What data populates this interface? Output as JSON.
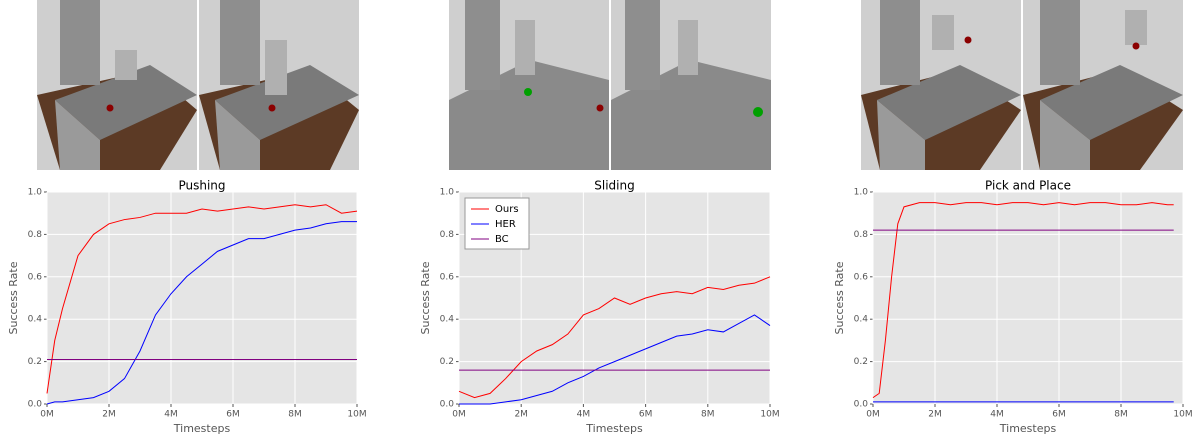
{
  "chart_data": [
    {
      "type": "line",
      "title": "Pushing",
      "xlabel": "Timesteps",
      "ylabel": "Success Rate",
      "x": [
        0,
        0.25,
        0.5,
        1,
        1.5,
        2,
        2.5,
        3,
        3.5,
        4,
        4.5,
        5,
        5.5,
        6,
        6.5,
        7,
        7.5,
        8,
        8.5,
        9,
        9.5,
        10
      ],
      "series": [
        {
          "color": "#ff0000",
          "values": [
            0.05,
            0.3,
            0.45,
            0.7,
            0.8,
            0.85,
            0.87,
            0.88,
            0.9,
            0.9,
            0.9,
            0.92,
            0.91,
            0.92,
            0.93,
            0.92,
            0.93,
            0.94,
            0.93,
            0.94,
            0.9,
            0.91
          ]
        },
        {
          "color": "#0000ff",
          "values": [
            0.0,
            0.01,
            0.01,
            0.02,
            0.03,
            0.06,
            0.12,
            0.25,
            0.42,
            0.52,
            0.6,
            0.66,
            0.72,
            0.75,
            0.78,
            0.78,
            0.8,
            0.82,
            0.83,
            0.85,
            0.86,
            0.86
          ]
        },
        {
          "color": "#800080",
          "values": [
            0.21,
            0.21,
            0.21,
            0.21,
            0.21,
            0.21,
            0.21,
            0.21,
            0.21,
            0.21,
            0.21,
            0.21,
            0.21,
            0.21,
            0.21,
            0.21,
            0.21,
            0.21,
            0.21,
            0.21,
            0.21,
            0.21
          ]
        }
      ],
      "xlim": [
        0,
        10
      ],
      "ylim": [
        0,
        1
      ],
      "xticks": [
        {
          "value": 0,
          "label": "0M"
        },
        {
          "value": 2,
          "label": "2M"
        },
        {
          "value": 4,
          "label": "4M"
        },
        {
          "value": 6,
          "label": "6M"
        },
        {
          "value": 8,
          "label": "8M"
        },
        {
          "value": 10,
          "label": "10M"
        }
      ],
      "yticks": [
        {
          "value": 0,
          "label": "0.0"
        },
        {
          "value": 0.2,
          "label": "0.2"
        },
        {
          "value": 0.4,
          "label": "0.4"
        },
        {
          "value": 0.6,
          "label": "0.6"
        },
        {
          "value": 0.8,
          "label": "0.8"
        },
        {
          "value": 1,
          "label": "1.0"
        }
      ],
      "grid": true
    },
    {
      "type": "line",
      "title": "Sliding",
      "xlabel": "Timesteps",
      "ylabel": "Success Rate",
      "x": [
        0,
        0.5,
        1,
        1.5,
        2,
        2.5,
        3,
        3.5,
        4,
        4.5,
        5,
        5.5,
        6,
        6.5,
        7,
        7.5,
        8,
        8.5,
        9,
        9.5,
        10
      ],
      "series": [
        {
          "name": "Ours",
          "color": "#ff0000",
          "values": [
            0.06,
            0.03,
            0.05,
            0.12,
            0.2,
            0.25,
            0.28,
            0.33,
            0.42,
            0.45,
            0.5,
            0.47,
            0.5,
            0.52,
            0.53,
            0.52,
            0.55,
            0.54,
            0.56,
            0.57,
            0.6
          ]
        },
        {
          "name": "HER",
          "color": "#0000ff",
          "values": [
            0.0,
            0.0,
            0.0,
            0.01,
            0.02,
            0.04,
            0.06,
            0.1,
            0.13,
            0.17,
            0.2,
            0.23,
            0.26,
            0.29,
            0.32,
            0.33,
            0.35,
            0.34,
            0.38,
            0.42,
            0.37
          ]
        },
        {
          "name": "BC",
          "color": "#800080",
          "values": [
            0.16,
            0.16,
            0.16,
            0.16,
            0.16,
            0.16,
            0.16,
            0.16,
            0.16,
            0.16,
            0.16,
            0.16,
            0.16,
            0.16,
            0.16,
            0.16,
            0.16,
            0.16,
            0.16,
            0.16,
            0.16
          ]
        }
      ],
      "legend": "upper left",
      "xlim": [
        0,
        10
      ],
      "ylim": [
        0,
        1
      ],
      "xticks": [
        {
          "value": 0,
          "label": "0M"
        },
        {
          "value": 2,
          "label": "2M"
        },
        {
          "value": 4,
          "label": "4M"
        },
        {
          "value": 6,
          "label": "6M"
        },
        {
          "value": 8,
          "label": "8M"
        },
        {
          "value": 10,
          "label": "10M"
        }
      ],
      "yticks": [
        {
          "value": 0,
          "label": "0.0"
        },
        {
          "value": 0.2,
          "label": "0.2"
        },
        {
          "value": 0.4,
          "label": "0.4"
        },
        {
          "value": 0.6,
          "label": "0.6"
        },
        {
          "value": 0.8,
          "label": "0.8"
        },
        {
          "value": 1,
          "label": "1.0"
        }
      ],
      "grid": true
    },
    {
      "type": "line",
      "title": "Pick and Place",
      "xlabel": "Timesteps",
      "ylabel": "Success Rate",
      "x": [
        0,
        0.2,
        0.4,
        0.6,
        0.8,
        1,
        1.5,
        2,
        2.5,
        3,
        3.5,
        4,
        4.5,
        5,
        5.5,
        6,
        6.5,
        7,
        7.5,
        8,
        8.5,
        9,
        9.5,
        9.7
      ],
      "series": [
        {
          "color": "#ff0000",
          "values": [
            0.03,
            0.05,
            0.3,
            0.6,
            0.85,
            0.93,
            0.95,
            0.95,
            0.94,
            0.95,
            0.95,
            0.94,
            0.95,
            0.95,
            0.94,
            0.95,
            0.94,
            0.95,
            0.95,
            0.94,
            0.94,
            0.95,
            0.94,
            0.94
          ]
        },
        {
          "color": "#0000ff",
          "values": [
            0.01,
            0.01,
            0.01,
            0.01,
            0.01,
            0.01,
            0.01,
            0.01,
            0.01,
            0.01,
            0.01,
            0.01,
            0.01,
            0.01,
            0.01,
            0.01,
            0.01,
            0.01,
            0.01,
            0.01,
            0.01,
            0.01,
            0.01,
            0.01
          ]
        },
        {
          "color": "#800080",
          "values": [
            0.82,
            0.82,
            0.82,
            0.82,
            0.82,
            0.82,
            0.82,
            0.82,
            0.82,
            0.82,
            0.82,
            0.82,
            0.82,
            0.82,
            0.82,
            0.82,
            0.82,
            0.82,
            0.82,
            0.82,
            0.82,
            0.82,
            0.82,
            0.82
          ]
        }
      ],
      "xlim": [
        0,
        10
      ],
      "ylim": [
        0,
        1
      ],
      "xticks": [
        {
          "value": 0,
          "label": "0M"
        },
        {
          "value": 2,
          "label": "2M"
        },
        {
          "value": 4,
          "label": "4M"
        },
        {
          "value": 6,
          "label": "6M"
        },
        {
          "value": 8,
          "label": "8M"
        },
        {
          "value": 10,
          "label": "10M"
        }
      ],
      "yticks": [
        {
          "value": 0,
          "label": "0.0"
        },
        {
          "value": 0.2,
          "label": "0.2"
        },
        {
          "value": 0.4,
          "label": "0.4"
        },
        {
          "value": 0.6,
          "label": "0.6"
        },
        {
          "value": 0.8,
          "label": "0.8"
        },
        {
          "value": 1,
          "label": "1.0"
        }
      ],
      "grid": true
    }
  ]
}
